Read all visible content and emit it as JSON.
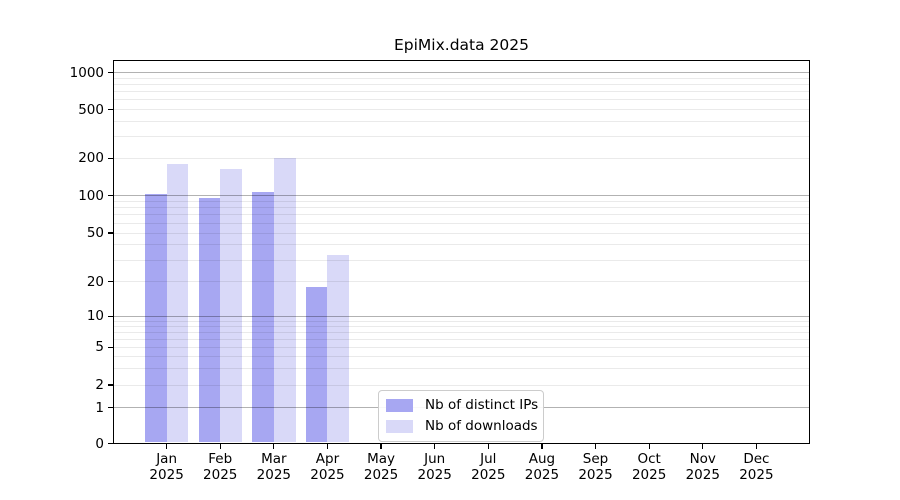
{
  "title": "EpiMix.data 2025",
  "chart_data": {
    "type": "bar",
    "title": "EpiMix.data 2025",
    "categories": [
      "Jan 2025",
      "Feb 2025",
      "Mar 2025",
      "Apr 2025",
      "May 2025",
      "Jun 2025",
      "Jul 2025",
      "Aug 2025",
      "Sep 2025",
      "Oct 2025",
      "Nov 2025",
      "Dec 2025"
    ],
    "series": [
      {
        "name": "Nb of distinct IPs",
        "color": "#a7a7f2",
        "values": [
          103,
          95,
          107,
          18,
          null,
          null,
          null,
          null,
          null,
          null,
          null,
          null
        ]
      },
      {
        "name": "Nb of downloads",
        "color": "#d9d9f8",
        "values": [
          180,
          165,
          200,
          33,
          null,
          null,
          null,
          null,
          null,
          null,
          null,
          null
        ]
      }
    ],
    "xlabel": "",
    "ylabel": "",
    "y_scale": "symlog",
    "y_ticks": [
      0,
      1,
      2,
      5,
      10,
      20,
      50,
      100,
      200,
      500,
      1000
    ],
    "ylim": [
      0,
      1000
    ],
    "grid": "horizontal major and minor, drawn above bars",
    "legend_position": "lower center",
    "colors": {
      "major_grid": "#b3b3b3",
      "minor_grid": "#ebebeb",
      "spine": "#000000",
      "text": "#000000",
      "background": "#ffffff"
    }
  }
}
